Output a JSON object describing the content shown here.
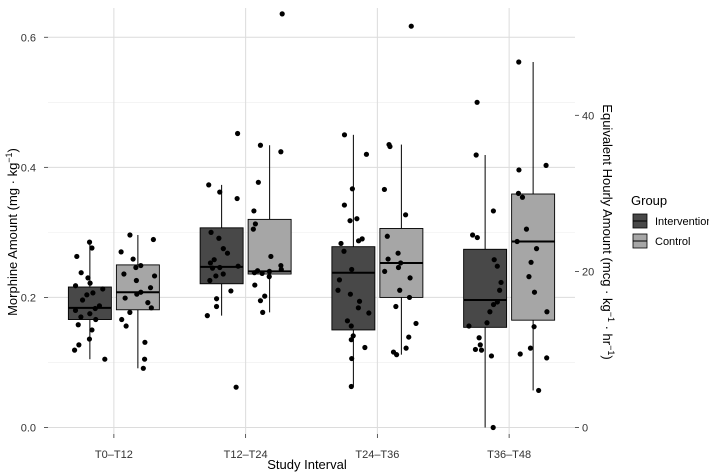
{
  "chart_data": {
    "type": "box",
    "title": "",
    "xlabel": "Study Interval",
    "ylabel_main": "Morphine Amount",
    "ylabel_unit_left": "mg · kg",
    "ylabel_unit_left_sup": "−1",
    "ylabel_right_main": "Equivalent Hourly Amount",
    "ylabel_right_unit": "mcg · kg",
    "ylabel_right_sup1": "−1",
    "ylabel_right_mid": " · hr",
    "ylabel_right_sup2": "−1",
    "ylim": [
      -0.01,
      0.645
    ],
    "y_ticks": [
      0.0,
      0.2,
      0.4,
      0.6
    ],
    "y_tick_labels": [
      "0.0",
      "0.2",
      "0.4",
      "0.6"
    ],
    "y2_ticks": [
      0,
      20,
      40
    ],
    "y2_tick_labels": [
      "0",
      "20",
      "40"
    ],
    "y2_scale_note": "secondary = primary / 12 h, in mcg·kg⁻¹·hr⁻¹",
    "categories": [
      "T0–T12",
      "T12–T24",
      "T24–T36",
      "T36–T48"
    ],
    "legend": {
      "title": "Group",
      "entries": [
        {
          "name": "Intervention",
          "color": "#484848"
        },
        {
          "name": "Control",
          "color": "#a6a6a6"
        }
      ]
    },
    "series": [
      {
        "name": "Intervention",
        "color": "#484848",
        "boxes": [
          {
            "category": "T0–T12",
            "q1": 0.166,
            "median": 0.184,
            "q3": 0.216,
            "whisker_low": 0.105,
            "whisker_high": 0.285,
            "points": [
              0.285,
              0.276,
              0.263,
              0.238,
              0.23,
              0.222,
              0.218,
              0.213,
              0.207,
              0.204,
              0.196,
              0.187,
              0.183,
              0.18,
              0.175,
              0.17,
              0.166,
              0.158,
              0.15,
              0.136,
              0.127,
              0.119,
              0.105
            ]
          },
          {
            "category": "T12–T24",
            "q1": 0.221,
            "median": 0.247,
            "q3": 0.307,
            "whisker_low": 0.172,
            "whisker_high": 0.373,
            "points": [
              0.452,
              0.373,
              0.362,
              0.352,
              0.3,
              0.291,
              0.275,
              0.268,
              0.258,
              0.253,
              0.248,
              0.246,
              0.245,
              0.236,
              0.233,
              0.226,
              0.21,
              0.198,
              0.186,
              0.172,
              0.062
            ]
          },
          {
            "category": "T24–T36",
            "q1": 0.15,
            "median": 0.238,
            "q3": 0.278,
            "whisker_low": 0.063,
            "whisker_high": 0.45,
            "points": [
              0.45,
              0.42,
              0.367,
              0.342,
              0.321,
              0.318,
              0.29,
              0.287,
              0.283,
              0.271,
              0.243,
              0.227,
              0.211,
              0.205,
              0.194,
              0.184,
              0.176,
              0.164,
              0.156,
              0.141,
              0.135,
              0.123,
              0.106,
              0.063
            ]
          },
          {
            "category": "T36–T48",
            "q1": 0.154,
            "median": 0.196,
            "q3": 0.274,
            "whisker_low": 0.0,
            "whisker_high": 0.419,
            "points": [
              0.5,
              0.419,
              0.333,
              0.296,
              0.292,
              0.258,
              0.248,
              0.223,
              0.211,
              0.193,
              0.189,
              0.178,
              0.161,
              0.156,
              0.138,
              0.127,
              0.12,
              0.119,
              0.11,
              0.0
            ]
          }
        ]
      },
      {
        "name": "Control",
        "color": "#a6a6a6",
        "boxes": [
          {
            "category": "T0–T12",
            "q1": 0.181,
            "median": 0.208,
            "q3": 0.25,
            "whisker_low": 0.091,
            "whisker_high": 0.296,
            "points": [
              0.296,
              0.289,
              0.27,
              0.259,
              0.249,
              0.246,
              0.236,
              0.233,
              0.226,
              0.215,
              0.208,
              0.205,
              0.199,
              0.192,
              0.184,
              0.177,
              0.166,
              0.156,
              0.131,
              0.105,
              0.091
            ]
          },
          {
            "category": "T12–T24",
            "q1": 0.236,
            "median": 0.24,
            "q3": 0.32,
            "whisker_low": 0.177,
            "whisker_high": 0.434,
            "points": [
              0.636,
              0.434,
              0.424,
              0.377,
              0.333,
              0.313,
              0.305,
              0.263,
              0.249,
              0.243,
              0.241,
              0.24,
              0.238,
              0.237,
              0.232,
              0.219,
              0.202,
              0.195,
              0.177
            ]
          },
          {
            "category": "T24–T36",
            "q1": 0.2,
            "median": 0.253,
            "q3": 0.306,
            "whisker_low": 0.112,
            "whisker_high": 0.435,
            "points": [
              0.617,
              0.435,
              0.432,
              0.366,
              0.327,
              0.294,
              0.268,
              0.259,
              0.253,
              0.246,
              0.24,
              0.23,
              0.211,
              0.2,
              0.186,
              0.16,
              0.139,
              0.122,
              0.116,
              0.112
            ]
          },
          {
            "category": "T36–T48",
            "q1": 0.165,
            "median": 0.286,
            "q3": 0.359,
            "whisker_low": 0.057,
            "whisker_high": 0.562,
            "points": [
              0.562,
              0.403,
              0.396,
              0.36,
              0.354,
              0.305,
              0.286,
              0.275,
              0.254,
              0.232,
              0.208,
              0.178,
              0.155,
              0.122,
              0.113,
              0.107,
              0.057
            ]
          }
        ]
      }
    ]
  }
}
